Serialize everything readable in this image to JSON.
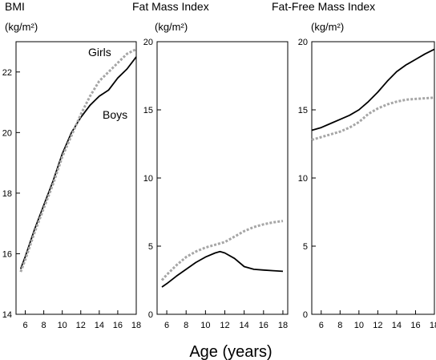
{
  "xlabel": "Age (years)",
  "chart_data": [
    {
      "type": "line",
      "title": "BMI",
      "ylabel": "(kg/m²)",
      "xlim": [
        5,
        18
      ],
      "ylim": [
        14,
        23
      ],
      "xticks": [
        6,
        8,
        10,
        12,
        14,
        16,
        18
      ],
      "yticks": [
        14,
        16,
        18,
        20,
        22
      ],
      "grid": false,
      "annotations": [
        {
          "text": "Girls",
          "series": "Girls"
        },
        {
          "text": "Boys",
          "series": "Boys"
        }
      ],
      "series": [
        {
          "name": "Boys",
          "style": "solid",
          "color": "#000000",
          "x": [
            5.5,
            6,
            7,
            8,
            9,
            10,
            11,
            12,
            13,
            14,
            15,
            16,
            17,
            18
          ],
          "y": [
            15.5,
            15.9,
            16.8,
            17.6,
            18.4,
            19.3,
            20.0,
            20.5,
            20.9,
            21.2,
            21.4,
            21.8,
            22.1,
            22.5
          ]
        },
        {
          "name": "Girls",
          "style": "dotted",
          "color": "#a6a6a6",
          "x": [
            5.5,
            6,
            7,
            8,
            9,
            10,
            11,
            12,
            13,
            14,
            15,
            16,
            17,
            18
          ],
          "y": [
            15.4,
            15.8,
            16.7,
            17.5,
            18.3,
            19.2,
            19.9,
            20.6,
            21.2,
            21.7,
            22.0,
            22.3,
            22.6,
            22.75
          ]
        }
      ]
    },
    {
      "type": "line",
      "title": "Fat Mass Index",
      "ylabel": "(kg/m²)",
      "xlim": [
        5,
        18.5
      ],
      "ylim": [
        0,
        20
      ],
      "xticks": [
        6,
        8,
        10,
        12,
        14,
        16,
        18
      ],
      "yticks": [
        0,
        5,
        10,
        15,
        20
      ],
      "grid": false,
      "series": [
        {
          "name": "Boys",
          "style": "solid",
          "color": "#000000",
          "x": [
            5.5,
            6,
            7,
            8,
            9,
            10,
            11,
            11.5,
            12,
            13,
            14,
            15,
            16,
            17,
            18
          ],
          "y": [
            2.0,
            2.25,
            2.8,
            3.3,
            3.8,
            4.2,
            4.5,
            4.6,
            4.5,
            4.1,
            3.5,
            3.3,
            3.25,
            3.2,
            3.15
          ]
        },
        {
          "name": "Girls",
          "style": "dotted",
          "color": "#a6a6a6",
          "x": [
            5.5,
            6,
            7,
            8,
            9,
            10,
            11,
            12,
            13,
            14,
            15,
            16,
            17,
            18
          ],
          "y": [
            2.5,
            2.9,
            3.6,
            4.2,
            4.6,
            4.9,
            5.1,
            5.3,
            5.7,
            6.1,
            6.4,
            6.6,
            6.75,
            6.85
          ]
        }
      ]
    },
    {
      "type": "line",
      "title": "Fat-Free Mass Index",
      "ylabel": "(kg/m²)",
      "xlim": [
        5,
        18
      ],
      "ylim": [
        0,
        20
      ],
      "xticks": [
        6,
        8,
        10,
        12,
        14,
        16,
        18
      ],
      "yticks": [
        0,
        5,
        10,
        15,
        20
      ],
      "grid": false,
      "series": [
        {
          "name": "Boys",
          "style": "solid",
          "color": "#000000",
          "x": [
            5,
            6,
            7,
            8,
            9,
            10,
            11,
            12,
            13,
            14,
            15,
            16,
            17,
            18
          ],
          "y": [
            13.5,
            13.7,
            14.0,
            14.3,
            14.6,
            15.0,
            15.6,
            16.3,
            17.1,
            17.8,
            18.3,
            18.7,
            19.1,
            19.45
          ]
        },
        {
          "name": "Girls",
          "style": "dotted",
          "color": "#a6a6a6",
          "x": [
            5,
            6,
            7,
            8,
            9,
            10,
            11,
            12,
            13,
            14,
            15,
            16,
            17,
            18
          ],
          "y": [
            12.8,
            13.0,
            13.2,
            13.4,
            13.7,
            14.1,
            14.7,
            15.1,
            15.4,
            15.6,
            15.75,
            15.8,
            15.85,
            15.9
          ]
        }
      ]
    }
  ]
}
